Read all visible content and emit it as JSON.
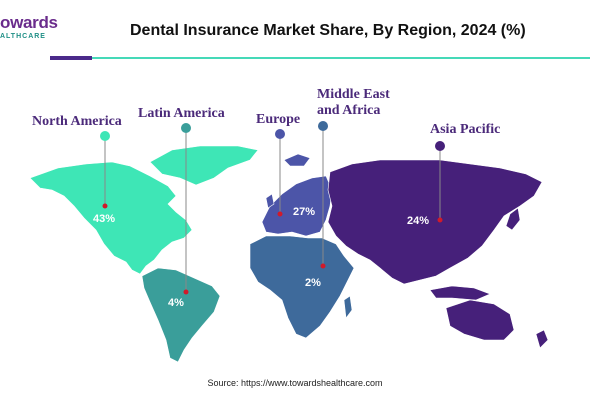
{
  "logo": {
    "main": "owards",
    "sub": "ALTHCARE"
  },
  "title": "Dental Insurance Market Share, By Region, 2024 (%)",
  "regions": [
    {
      "name": "North America",
      "value": "43%",
      "color": "#3ee6b6"
    },
    {
      "name": "Latin America",
      "value": "4%",
      "color": "#3a9e9a"
    },
    {
      "name": "Europe",
      "value": "27%",
      "color": "#4c55a8"
    },
    {
      "name": "Middle East and Africa",
      "name_line1": "Middle East",
      "name_line2": "and Africa",
      "value": "2%",
      "color": "#3e6a9b"
    },
    {
      "name": "Asia Pacific",
      "value": "24%",
      "color": "#46207a"
    }
  ],
  "source": "Source: https://www.towardshealthcare.com"
}
